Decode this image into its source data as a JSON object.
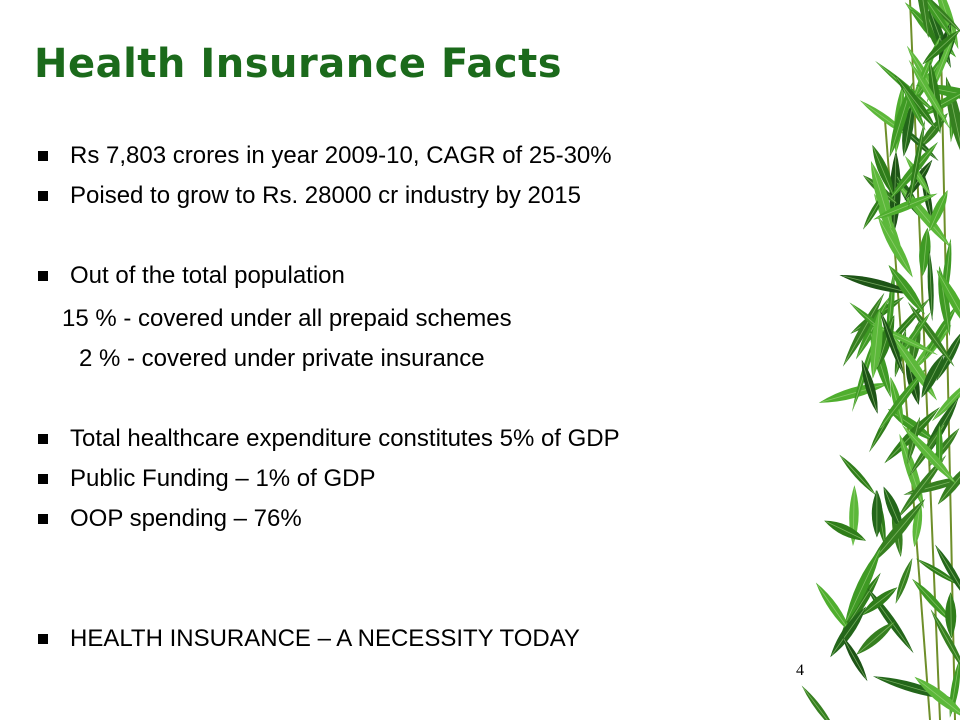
{
  "slide": {
    "title": "Health Insurance Facts",
    "title_color": "#1b6a1b",
    "bullets": [
      "Rs 7,803 crores in year 2009-10, CAGR of 25-30%",
      "Poised to grow to Rs. 28000 cr industry by 2015",
      "Out of the total population",
      "Total healthcare expenditure constitutes 5% of GDP",
      "Public Funding – 1% of GDP",
      "OOP spending – 76%",
      "HEALTH INSURANCE – A NECESSITY TODAY"
    ],
    "sub_lines": [
      "15 %  - covered under all prepaid schemes",
      "2 %  - covered under private insurance"
    ],
    "page_number": "4",
    "decoration_icon": "bamboo-leaves"
  }
}
